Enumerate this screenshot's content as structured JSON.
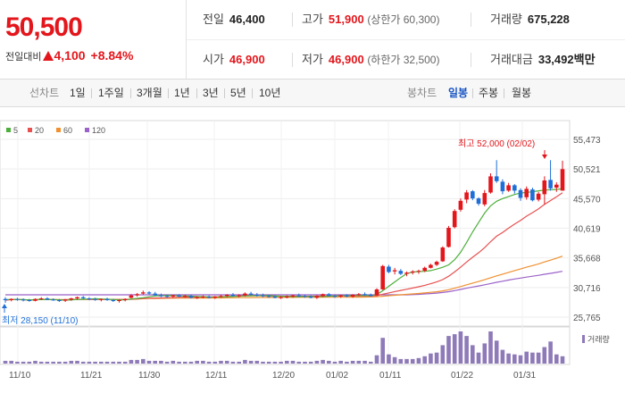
{
  "quote": {
    "price": "50,500",
    "change_label": "전일대비",
    "change_amount": "4,100",
    "change_percent": "+8.84%",
    "prev_close_label": "전일",
    "prev_close": "46,400",
    "high_label": "고가",
    "high": "51,900",
    "upper_limit": "(상한가 60,300)",
    "volume_label": "거래량",
    "volume": "675,228",
    "open_label": "시가",
    "open": "46,900",
    "low_label": "저가",
    "low": "46,900",
    "lower_limit": "(하한가 32,500)",
    "amount_label": "거래대금",
    "amount": "33,492",
    "amount_unit": "백만"
  },
  "tabs": {
    "line_chart": "선차트",
    "periods": [
      "1일",
      "1주일",
      "3개월",
      "1년",
      "3년",
      "5년",
      "10년"
    ],
    "candle_chart": "봉차트",
    "candle_periods": [
      "일봉",
      "주봉",
      "월봉"
    ],
    "active_candle": "일봉"
  },
  "colors": {
    "up": "#e3161c",
    "down": "#1f6fd8",
    "ma5": "#4caf3a",
    "ma20": "#e85050",
    "ma60": "#f09030",
    "ma120": "#9b62c9",
    "volume": "#8e7ab8"
  },
  "chart_data": {
    "type": "candlestick",
    "legend": [
      "5",
      "20",
      "60",
      "120"
    ],
    "volume_legend": "거래량",
    "y_ticks": [
      "55,473",
      "50,521",
      "45,570",
      "40,619",
      "35,668",
      "30,716",
      "25,765"
    ],
    "ylim": [
      25765,
      55473
    ],
    "x_ticks": [
      "11/10",
      "11/21",
      "11/30",
      "12/11",
      "12/20",
      "01/02",
      "01/11",
      "01/22",
      "01/31"
    ],
    "max_annotation": "최고 52,000 (02/02)",
    "min_annotation": "최저 28,150 (11/10)",
    "candles": [
      [
        28800,
        29100,
        28150,
        28600
      ],
      [
        28600,
        28900,
        28400,
        28800
      ],
      [
        28800,
        29000,
        28500,
        28700
      ],
      [
        28700,
        28900,
        28400,
        28600
      ],
      [
        28600,
        28800,
        28350,
        28500
      ],
      [
        28500,
        28900,
        28400,
        28800
      ],
      [
        28800,
        29100,
        28600,
        28900
      ],
      [
        28900,
        29100,
        28600,
        28700
      ],
      [
        28700,
        28900,
        28500,
        28600
      ],
      [
        28600,
        28800,
        28300,
        28500
      ],
      [
        28500,
        28800,
        28300,
        28700
      ],
      [
        28700,
        29000,
        28500,
        28900
      ],
      [
        28900,
        29200,
        28700,
        29100
      ],
      [
        29100,
        29300,
        28800,
        28900
      ],
      [
        28900,
        29100,
        28600,
        28800
      ],
      [
        28800,
        29000,
        28500,
        28700
      ],
      [
        28700,
        28900,
        28400,
        28800
      ],
      [
        28800,
        29000,
        28500,
        28600
      ],
      [
        28600,
        28800,
        28300,
        28500
      ],
      [
        28500,
        28700,
        28200,
        28600
      ],
      [
        28600,
        28900,
        28400,
        28800
      ],
      [
        29000,
        29600,
        28900,
        29400
      ],
      [
        29400,
        29800,
        29200,
        29600
      ],
      [
        29700,
        30200,
        29500,
        29900
      ],
      [
        29900,
        30100,
        29500,
        29700
      ],
      [
        29700,
        30000,
        29300,
        29400
      ],
      [
        29400,
        29700,
        29100,
        29300
      ],
      [
        29300,
        29500,
        29000,
        29200
      ],
      [
        29200,
        29500,
        29000,
        29400
      ],
      [
        29400,
        29600,
        29100,
        29200
      ],
      [
        29200,
        29500,
        29000,
        29300
      ],
      [
        29300,
        29500,
        28900,
        29000
      ],
      [
        29000,
        29300,
        28800,
        29100
      ],
      [
        29100,
        29400,
        28900,
        29200
      ],
      [
        29200,
        29400,
        28900,
        29000
      ],
      [
        29000,
        29300,
        28800,
        29200
      ],
      [
        29200,
        29500,
        29000,
        29300
      ],
      [
        29300,
        29600,
        29100,
        29500
      ],
      [
        29500,
        29800,
        29200,
        29300
      ],
      [
        29300,
        29600,
        29100,
        29400
      ],
      [
        29400,
        29900,
        29200,
        29700
      ],
      [
        29700,
        30000,
        29400,
        29500
      ],
      [
        29500,
        29800,
        29200,
        29400
      ],
      [
        29400,
        29700,
        29100,
        29300
      ],
      [
        29300,
        29500,
        29000,
        29200
      ],
      [
        29200,
        29400,
        28900,
        29000
      ],
      [
        29000,
        29300,
        28800,
        29100
      ],
      [
        29100,
        29400,
        28900,
        29200
      ],
      [
        29200,
        29500,
        29000,
        29400
      ],
      [
        29400,
        29700,
        29100,
        29300
      ],
      [
        29300,
        29500,
        29000,
        29200
      ],
      [
        29200,
        29400,
        28900,
        29000
      ],
      [
        29000,
        29400,
        28800,
        29300
      ],
      [
        29300,
        29700,
        29100,
        29600
      ],
      [
        29600,
        29800,
        29200,
        29300
      ],
      [
        29300,
        29500,
        29000,
        29200
      ],
      [
        29200,
        29500,
        29000,
        29400
      ],
      [
        29400,
        29600,
        29100,
        29200
      ],
      [
        29200,
        29600,
        29000,
        29500
      ],
      [
        29500,
        29800,
        29300,
        29600
      ],
      [
        29600,
        29900,
        29300,
        29500
      ],
      [
        29500,
        29700,
        29200,
        29300
      ],
      [
        29400,
        30600,
        29300,
        30400
      ],
      [
        30400,
        34500,
        30300,
        34300
      ],
      [
        34200,
        34500,
        33100,
        33300
      ],
      [
        33400,
        34000,
        32900,
        33600
      ],
      [
        33500,
        33800,
        32800,
        33000
      ],
      [
        33000,
        33400,
        32600,
        33200
      ],
      [
        33200,
        33600,
        32900,
        33400
      ],
      [
        33400,
        33700,
        33000,
        33500
      ],
      [
        33500,
        34200,
        33300,
        34000
      ],
      [
        34000,
        34700,
        33900,
        34500
      ],
      [
        34500,
        35200,
        34300,
        35000
      ],
      [
        35100,
        37600,
        35000,
        37400
      ],
      [
        37500,
        41000,
        37400,
        40700
      ],
      [
        40800,
        43800,
        40600,
        43500
      ],
      [
        43700,
        45600,
        43400,
        45200
      ],
      [
        45400,
        47000,
        44800,
        46600
      ],
      [
        46800,
        47000,
        45300,
        45600
      ],
      [
        45600,
        45800,
        44400,
        44700
      ],
      [
        44600,
        47000,
        44300,
        46500
      ],
      [
        46600,
        49800,
        46400,
        49300
      ],
      [
        49300,
        52000,
        48200,
        48500
      ],
      [
        48400,
        48800,
        46300,
        46800
      ],
      [
        46900,
        48200,
        46700,
        47800
      ],
      [
        47800,
        48000,
        46400,
        46900
      ],
      [
        47000,
        47300,
        45200,
        45700
      ],
      [
        45800,
        47600,
        45400,
        47200
      ],
      [
        47100,
        47400,
        45100,
        45300
      ],
      [
        45400,
        46700,
        45100,
        46400
      ],
      [
        46300,
        49300,
        44600,
        48600
      ],
      [
        48700,
        52000,
        46900,
        47300
      ],
      [
        47400,
        48300,
        46700,
        47900
      ],
      [
        46900,
        51900,
        46900,
        50500
      ]
    ],
    "volume": [
      3,
      3,
      2,
      2,
      2,
      3,
      2,
      2,
      2,
      2,
      2,
      3,
      3,
      2,
      2,
      2,
      2,
      2,
      2,
      2,
      2,
      4,
      4,
      5,
      3,
      3,
      3,
      2,
      3,
      2,
      2,
      2,
      3,
      3,
      2,
      2,
      3,
      3,
      2,
      2,
      4,
      3,
      3,
      2,
      2,
      2,
      2,
      3,
      3,
      2,
      2,
      2,
      3,
      4,
      3,
      2,
      3,
      2,
      3,
      3,
      3,
      2,
      9,
      28,
      10,
      7,
      5,
      5,
      5,
      6,
      8,
      11,
      12,
      20,
      30,
      32,
      35,
      30,
      20,
      12,
      22,
      35,
      25,
      15,
      11,
      10,
      9,
      13,
      12,
      12,
      18,
      24,
      10,
      8
    ],
    "ma5": [
      28700,
      28700,
      28700,
      28700,
      28650,
      28680,
      28700,
      28700,
      28700,
      28650,
      28600,
      28650,
      28700,
      28750,
      28800,
      28850,
      28800,
      28760,
      28700,
      28650,
      28660,
      28780,
      28900,
      29000,
      29160,
      29300,
      29350,
      29360,
      29360,
      29320,
      29300,
      29280,
      29220,
      29180,
      29140,
      29120,
      29140,
      29180,
      29220,
      29260,
      29300,
      29340,
      29360,
      29380,
      29360,
      29300,
      29260,
      29220,
      29200,
      29200,
      29220,
      29220,
      29200,
      29220,
      29260,
      29300,
      29340,
      29360,
      29380,
      29380,
      29380,
      29360,
      29520,
      30180,
      30920,
      31640,
      32380,
      33040,
      33300,
      33380,
      33420,
      33540,
      33800,
      34100,
      34500,
      35360,
      36600,
      38240,
      40020,
      41600,
      43160,
      44360,
      45120,
      45580,
      45900,
      46260,
      46500,
      46600,
      46720,
      46880,
      47000,
      47060,
      47120,
      47220
    ]
  }
}
